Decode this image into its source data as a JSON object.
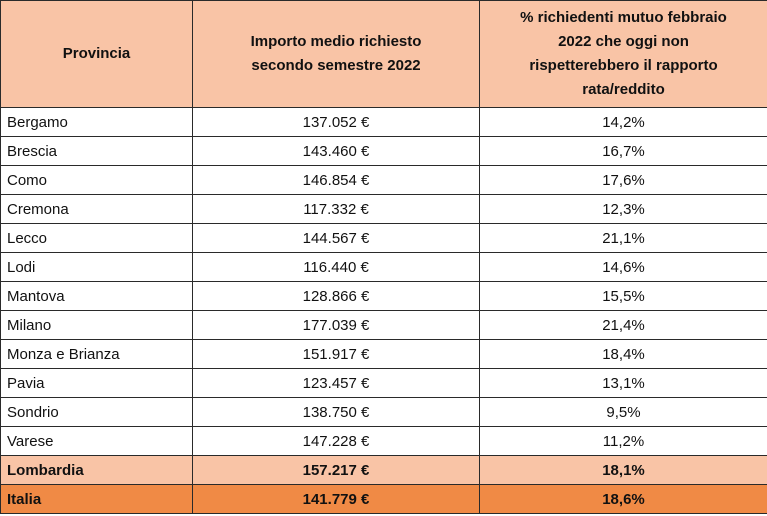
{
  "headers": {
    "col1": "Provincia",
    "col2_line1": "Importo medio richiesto",
    "col2_line2": "secondo semestre 2022",
    "col3_line1": "% richiedenti mutuo febbraio",
    "col3_line2": "2022 che oggi non",
    "col3_line3": "rispetterebbero il rapporto",
    "col3_line4": "rata/reddito"
  },
  "rows": [
    {
      "provincia": "Bergamo",
      "importo": "137.052 €",
      "percentuale": "14,2%"
    },
    {
      "provincia": "Brescia",
      "importo": "143.460 €",
      "percentuale": "16,7%"
    },
    {
      "provincia": "Como",
      "importo": "146.854 €",
      "percentuale": "17,6%"
    },
    {
      "provincia": "Cremona",
      "importo": "117.332 €",
      "percentuale": "12,3%"
    },
    {
      "provincia": "Lecco",
      "importo": "144.567 €",
      "percentuale": "21,1%"
    },
    {
      "provincia": "Lodi",
      "importo": "116.440 €",
      "percentuale": "14,6%"
    },
    {
      "provincia": "Mantova",
      "importo": "128.866 €",
      "percentuale": "15,5%"
    },
    {
      "provincia": "Milano",
      "importo": "177.039 €",
      "percentuale": "21,4%"
    },
    {
      "provincia": "Monza e Brianza",
      "importo": "151.917 €",
      "percentuale": "18,4%"
    },
    {
      "provincia": "Pavia",
      "importo": "123.457 €",
      "percentuale": "13,1%"
    },
    {
      "provincia": "Sondrio",
      "importo": "138.750 €",
      "percentuale": "9,5%"
    },
    {
      "provincia": "Varese",
      "importo": "147.228 €",
      "percentuale": "11,2%"
    }
  ],
  "total_regional": {
    "provincia": "Lombardia",
    "importo": "157.217 €",
    "percentuale": "18,1%"
  },
  "total_national": {
    "provincia": "Italia",
    "importo": "141.779 €",
    "percentuale": "18,6%"
  },
  "colors": {
    "header_bg": "#f9c4a6",
    "regional_bg": "#f9c4a6",
    "national_bg": "#f08a45"
  }
}
